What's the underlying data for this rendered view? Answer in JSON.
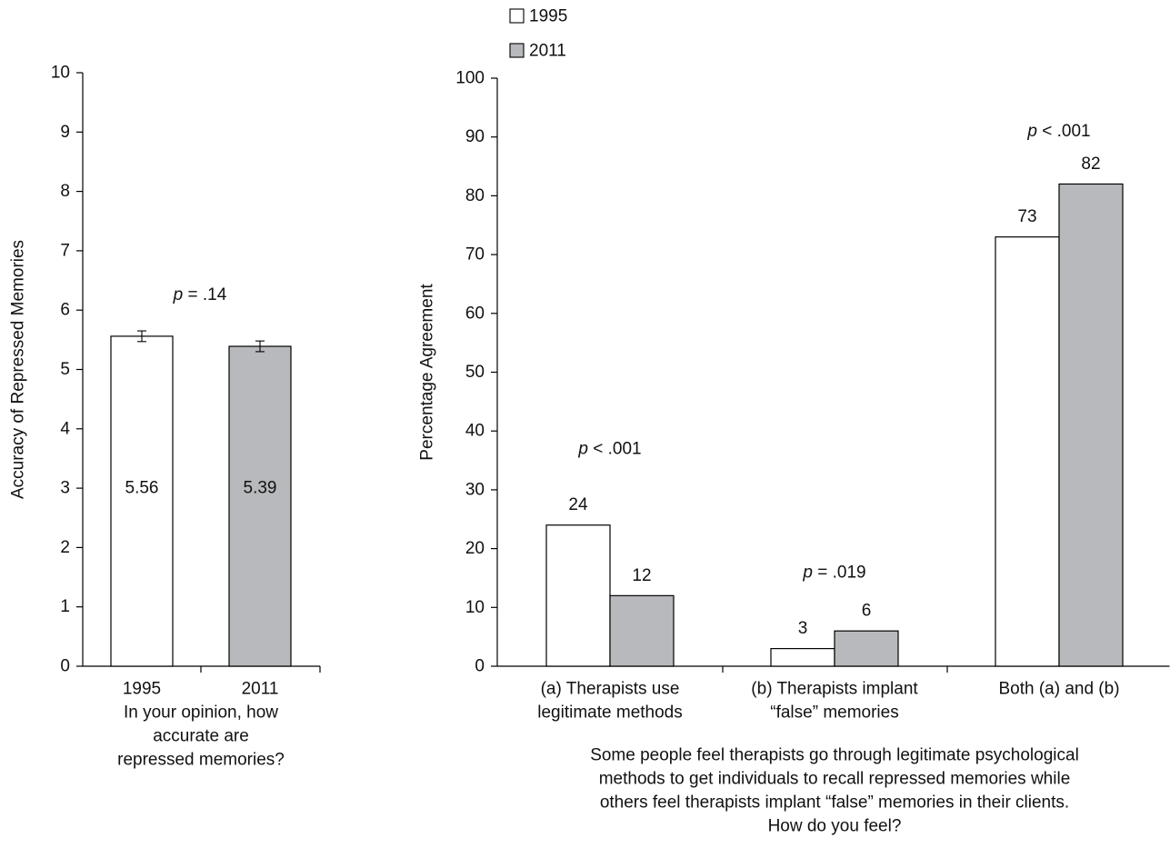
{
  "legend": {
    "items": [
      {
        "label": "1995",
        "color": "#ffffff"
      },
      {
        "label": "2011",
        "color": "#b8b9bc"
      }
    ]
  },
  "chart_data": [
    {
      "type": "bar",
      "title": "",
      "ylabel": "Accuracy of Repressed Memories",
      "xlabel": "In your opinion, how accurate are repressed memories?",
      "xlabel_lines": [
        "In your opinion, how",
        "accurate are",
        "repressed memories?"
      ],
      "categories": [
        "1995",
        "2011"
      ],
      "values": [
        5.56,
        5.39
      ],
      "value_labels": [
        "5.56",
        "5.39"
      ],
      "error": [
        0.09,
        0.09
      ],
      "colors": [
        "#ffffff",
        "#b8b9bc"
      ],
      "ylim": [
        0,
        10
      ],
      "yticks": [
        "0",
        "1",
        "2",
        "3",
        "4",
        "5",
        "6",
        "7",
        "8",
        "9",
        "10"
      ],
      "annotation": {
        "p": "p",
        "rest": " = .14"
      },
      "grid": false
    },
    {
      "type": "bar",
      "title": "",
      "ylabel": "Percentage Agreement",
      "xlabel": "Some people feel therapists go through legitimate psychological methods to get individuals to recall repressed memories while others feel therapists implant “false” memories in their clients. How do you feel?",
      "xlabel_lines": [
        "Some people feel therapists go through legitimate psychological",
        "methods to get individuals to recall repressed memories while",
        "others feel therapists implant “false” memories in their clients.",
        "How do you feel?"
      ],
      "categories": [
        {
          "lines": [
            "(a) Therapists use",
            "legitimate methods"
          ]
        },
        {
          "lines": [
            "(b) Therapists implant",
            "“false” memories"
          ]
        },
        {
          "lines": [
            "Both (a) and (b)"
          ]
        }
      ],
      "series": [
        {
          "name": "1995",
          "color": "#ffffff",
          "values": [
            24,
            3,
            73
          ],
          "value_labels": [
            "24",
            "3",
            "73"
          ]
        },
        {
          "name": "2011",
          "color": "#b8b9bc",
          "values": [
            12,
            6,
            82
          ],
          "value_labels": [
            "12",
            "6",
            "82"
          ]
        }
      ],
      "annotations": [
        {
          "p": "p",
          "rest": " < .001"
        },
        {
          "p": "p",
          "rest": " = .019"
        },
        {
          "p": "p",
          "rest": " < .001"
        }
      ],
      "ylim": [
        0,
        100
      ],
      "yticks": [
        "0",
        "10",
        "20",
        "30",
        "40",
        "50",
        "60",
        "70",
        "80",
        "90",
        "100"
      ],
      "legend_position": "top-left",
      "grid": false
    }
  ]
}
